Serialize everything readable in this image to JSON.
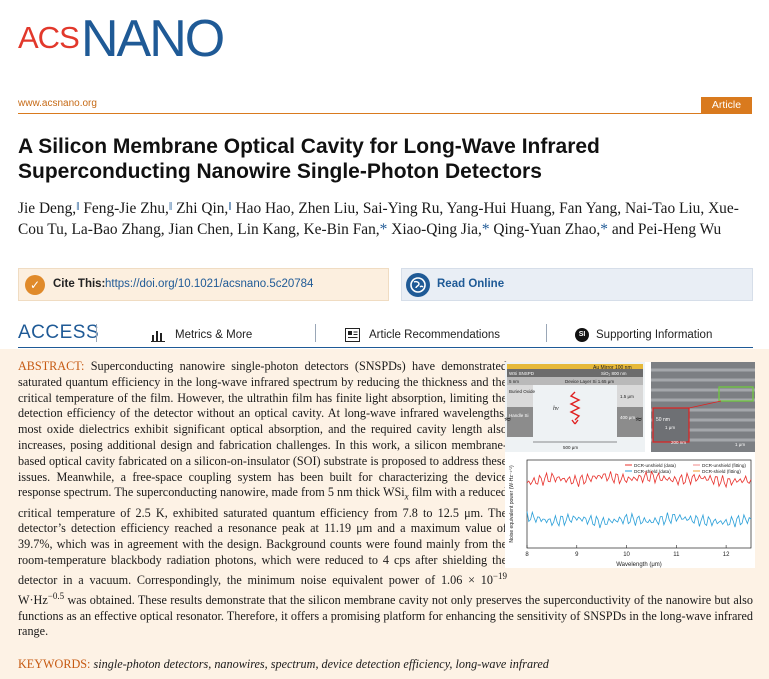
{
  "journal": {
    "logo_acs": "ACS",
    "logo_nano": "NANO",
    "url": "www.acsnano.org",
    "article_type": "Article",
    "brand_blue": "#1f5a96",
    "brand_red": "#e2382b",
    "accent_orange": "#d97a1e"
  },
  "title_line1": "A Silicon Membrane Optical Cavity for Long-Wave Infrared",
  "title_line2": "Superconducting Nanowire Single-Photon Detectors",
  "authors": [
    {
      "name": "Jie Deng,",
      "mark": "‖"
    },
    {
      "name": "Feng-Jie Zhu,",
      "mark": "‖"
    },
    {
      "name": "Zhi Qin,",
      "mark": "‖"
    },
    {
      "name": "Hao Hao, Zhen Liu, Sai-Ying Ru, Yang-Hui Huang, Fan Yang, Nai-Tao Liu, Xue-Cou Tu, La-Bao Zhang, Jian Chen, Lin Kang, Ke-Bin Fan,",
      "mark": "*"
    },
    {
      "name": "Xiao-Qing Jia,",
      "mark": "*"
    },
    {
      "name": "Qing-Yuan Zhao,",
      "mark": "*"
    },
    {
      "name": "and Pei-Heng Wu",
      "mark": ""
    }
  ],
  "cite": {
    "label": "Cite This:",
    "doi": "https://doi.org/10.1021/acsnano.5c20784",
    "icon": "check-icon"
  },
  "read_online": {
    "label": "Read Online",
    "icon": "globe-icon"
  },
  "access": {
    "title": "ACCESS",
    "metrics": "Metrics & More",
    "recommendations": "Article Recommendations",
    "supporting": "Supporting Information",
    "si_badge": "SI"
  },
  "abstract": {
    "label": "ABSTRACT:",
    "p1": " Superconducting nanowire single-photon detectors (SNSPDs) have demonstrated saturated quantum efficiency in the long-wave infrared spectrum by reducing the thickness and the critical temperature of the film. However, the ultrathin film has finite light absorption, limiting the detection efficiency of the detector without an optical cavity. At long-wave infrared wavelengths, most oxide dielectrics exhibit significant optical absorption, and the required cavity length also increases, posing additional design and fabrication challenges. In this work, a silicon membrane-based optical cavity fabricated on a silicon-on-insulator (SOI) substrate is proposed to address these issues. Meanwhile, a free-space coupling system has been built for characterizing the device response spectrum. The superconducting nanowire, made from 5 nm thick WSi",
    "sub_x": "x",
    "p2": " film with a reduced critical temperature of 2.5 K, exhibited saturated quantum efficiency from 7.8 to 12.5 μm. The detector’s detection efficiency reached a resonance peak at 11.19 μm and a maximum value of 39.7%, which was in agreement with the design. Background counts were found mainly from the room-temperature blackbody radiation photons, which were reduced to 4 cps after shielding the detector in a vacuum. Correspondingly, the minimum noise equivalent power of 1.06 × 10",
    "sup1": "−19",
    "p3": " W·Hz",
    "sup2": "−0.5",
    "p4": " was obtained. These results demonstrate that the silicon membrane cavity not only preserves the superconductivity of the nanowire but also functions as an effective optical resonator. Therefore, it offers a promising platform for enhancing the sensitivity of SNSPDs in the long-wave infrared range."
  },
  "keywords": {
    "label": "KEYWORDS:",
    "text": "single-photon detectors, nanowires, spectrum, device detection efficiency, long-wave infrared"
  },
  "figure": {
    "diagram": {
      "layer_top": "Au Mirror 100 nm",
      "wsi": "WSi SNSPD",
      "wsi_thk": "5 nm",
      "sio2": "SiO₂ 800 nm",
      "device_layer": "Device Layer Si 1.65 μm",
      "buried_oxide": "Buried Oxide",
      "handle_si": "Handle Si",
      "thk1": "1.5 μm",
      "thk2": "400 μm",
      "hv": "hν",
      "width": "500 μm"
    },
    "sem": {
      "scale1": "1 μm",
      "scale2": "200 nm",
      "scale3": "1 μm",
      "width_label": "50 nm"
    },
    "legend": [
      {
        "name": "DCR-unshield (data)",
        "color": "#e8302b"
      },
      {
        "name": "DCR-shield (data)",
        "color": "#2a9fd8"
      },
      {
        "name": "DCR-unshield (fitting)",
        "color": "#f08a8a"
      },
      {
        "name": "DCR-shield (fitting)",
        "color": "#f0a030"
      }
    ],
    "xlabel": "Wavelength (μm)",
    "ylabel": "Noise equivalent power (W·Hz⁻¹ᐟ²)",
    "xticks": [
      "8",
      "9",
      "10",
      "11",
      "12"
    ]
  },
  "chart_data": {
    "type": "line",
    "xlabel": "Wavelength (μm)",
    "ylabel": "Noise equivalent power",
    "xlim": [
      8,
      12.5
    ],
    "x": [
      8.0,
      8.5,
      9.0,
      9.5,
      10.0,
      10.5,
      11.0,
      11.5,
      12.0,
      12.5
    ],
    "series": [
      {
        "name": "DCR-unshield (data)",
        "values": [
          0.74,
          0.8,
          0.76,
          0.82,
          0.78,
          0.81,
          0.77,
          0.8,
          0.75,
          0.78
        ]
      },
      {
        "name": "DCR-shield (data)",
        "values": [
          0.36,
          0.3,
          0.34,
          0.29,
          0.33,
          0.3,
          0.35,
          0.31,
          0.29,
          0.33
        ]
      }
    ]
  }
}
